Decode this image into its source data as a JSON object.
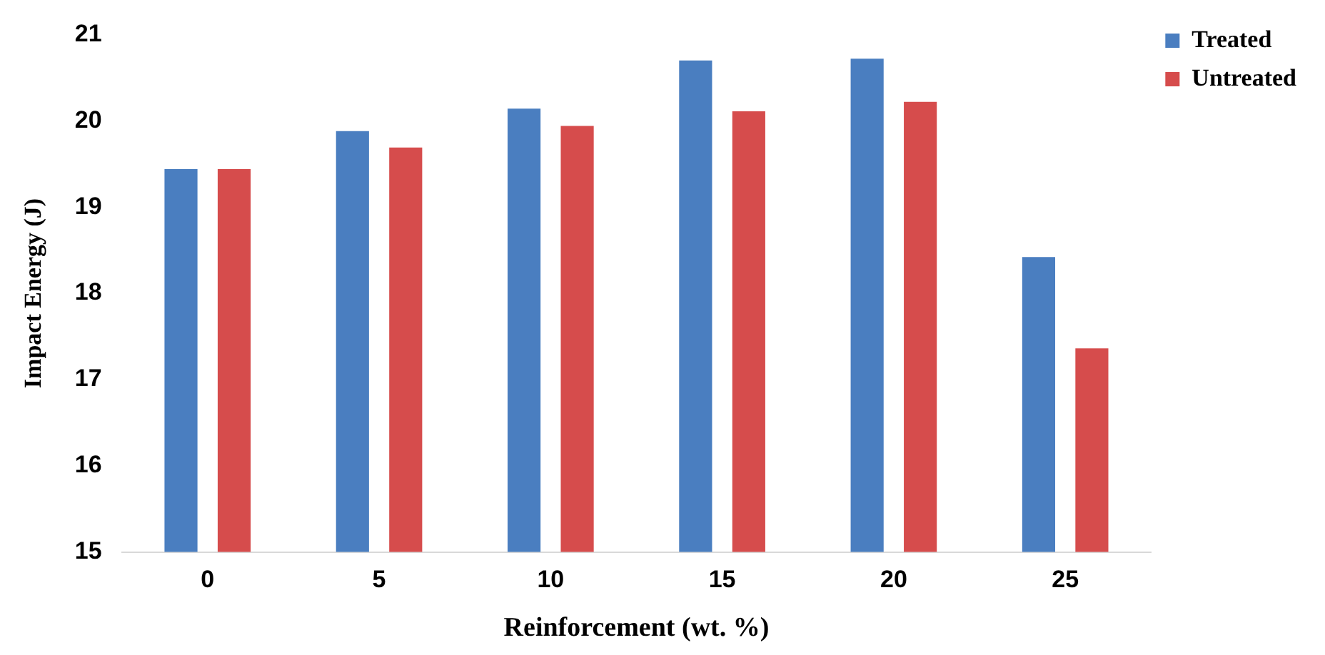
{
  "chart_data": {
    "type": "bar",
    "xlabel": "Reinforcement (wt. %)",
    "ylabel": "Impact Energy (J)",
    "categories": [
      "0",
      "5",
      "10",
      "15",
      "20",
      "25"
    ],
    "series": [
      {
        "name": "Treated",
        "color": "#4a7ec0",
        "values": [
          19.44,
          19.88,
          20.14,
          20.7,
          20.72,
          18.42
        ]
      },
      {
        "name": "Untreated",
        "color": "#d64c4c",
        "values": [
          19.44,
          19.69,
          19.94,
          20.11,
          20.22,
          17.36
        ]
      }
    ],
    "ylim": [
      15,
      21
    ],
    "yticks": [
      15,
      16,
      17,
      18,
      19,
      20,
      21
    ],
    "grid": false,
    "legend": "top right"
  }
}
